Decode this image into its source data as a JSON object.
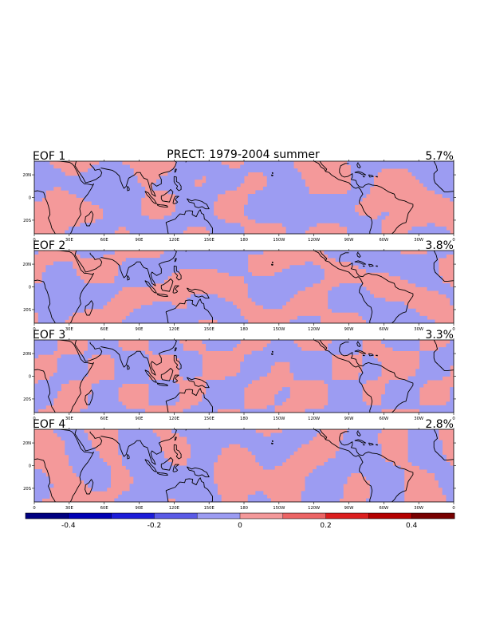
{
  "figure": {
    "title": "PRECT: 1979-2004 summer",
    "field_colors": {
      "positive": "#f4999a",
      "negative": "#9c9cf2",
      "coast": "#000000"
    }
  },
  "panels": [
    {
      "label": "EOF 1",
      "percent": "5.7%"
    },
    {
      "label": "EOF 2",
      "percent": "3.8%"
    },
    {
      "label": "EOF 3",
      "percent": "3.3%"
    },
    {
      "label": "EOF 4",
      "percent": "2.8%"
    }
  ],
  "axes": {
    "x_ticks": [
      "0",
      "30E",
      "60E",
      "90E",
      "120E",
      "150E",
      "180",
      "150W",
      "120W",
      "90W",
      "60W",
      "30W",
      "0"
    ],
    "y_ticks": [
      "20N",
      "0",
      "20S"
    ]
  },
  "colorbar": {
    "range": [
      -0.5,
      0.5
    ],
    "tick_labels": [
      "-0.4",
      "-0.2",
      "0",
      "0.2",
      "0.4"
    ],
    "tick_values": [
      -0.4,
      -0.2,
      0,
      0.2,
      0.4
    ],
    "bins": [
      {
        "from": -0.5,
        "to": -0.4,
        "color": "#000080"
      },
      {
        "from": -0.4,
        "to": -0.3,
        "color": "#0000b4"
      },
      {
        "from": -0.3,
        "to": -0.2,
        "color": "#1c1cd8"
      },
      {
        "from": -0.2,
        "to": -0.1,
        "color": "#5a5ae6"
      },
      {
        "from": -0.1,
        "to": 0.0,
        "color": "#9c9cf2"
      },
      {
        "from": 0.0,
        "to": 0.1,
        "color": "#f4999a"
      },
      {
        "from": 0.1,
        "to": 0.2,
        "color": "#ec6464"
      },
      {
        "from": 0.2,
        "to": 0.3,
        "color": "#dc1e1e"
      },
      {
        "from": 0.3,
        "to": 0.4,
        "color": "#b40000"
      },
      {
        "from": 0.4,
        "to": 0.5,
        "color": "#780000"
      }
    ]
  }
}
